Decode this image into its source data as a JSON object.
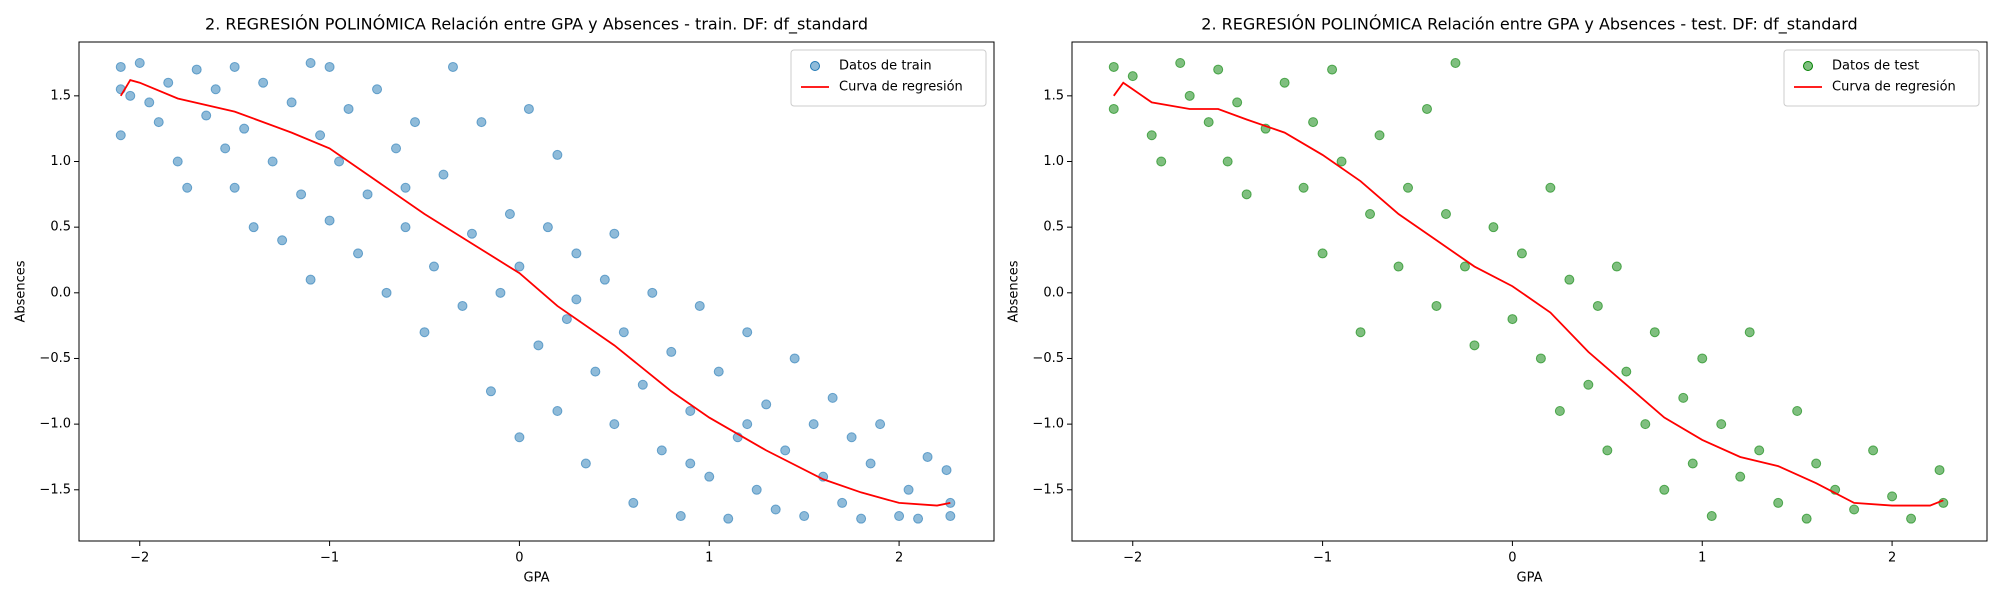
{
  "chart_data": [
    {
      "type": "scatter",
      "title": "2. REGRESIÓN POLINÓMICA Relación entre GPA y Absences - train. DF: df_standard",
      "x_label": "GPA",
      "y_label": "Absences",
      "xlim": [
        -2.32,
        2.5
      ],
      "ylim": [
        -1.89,
        1.91
      ],
      "xticks": [
        {
          "value": -2,
          "label": "−2"
        },
        {
          "value": -1,
          "label": "−1"
        },
        0,
        1,
        2
      ],
      "yticks": [
        {
          "value": -1.5,
          "label": "−1.5"
        },
        {
          "value": -1.0,
          "label": "−1.0"
        },
        {
          "value": -0.5,
          "label": "−0.5"
        },
        {
          "value": 0.0,
          "label": "0.0"
        },
        0.5,
        {
          "value": 1.0,
          "label": "1.0"
        },
        1.5
      ],
      "legend": "upper right",
      "series": [
        {
          "name": "Datos de train",
          "type": "scatter",
          "color": "#1f77b4",
          "x": [
            -2.1,
            -2.1,
            -2.05,
            -2.0,
            -1.95,
            -1.9,
            -1.85,
            -1.8,
            -1.75,
            -1.7,
            -1.65,
            -1.6,
            -1.55,
            -1.5,
            -1.5,
            -1.45,
            -1.4,
            -1.35,
            -1.3,
            -1.25,
            -1.2,
            -1.15,
            -1.1,
            -1.1,
            -1.05,
            -1.0,
            -0.95,
            -0.9,
            -0.85,
            -0.8,
            -0.75,
            -0.7,
            -0.65,
            -0.6,
            -0.55,
            -0.5,
            -0.45,
            -0.4,
            -0.35,
            -0.3,
            -0.25,
            -0.2,
            -0.15,
            -0.1,
            -0.05,
            0.0,
            0.0,
            0.05,
            0.1,
            0.15,
            0.2,
            0.2,
            0.25,
            0.3,
            0.35,
            0.4,
            0.45,
            0.5,
            0.5,
            0.55,
            0.6,
            0.65,
            0.7,
            0.75,
            0.8,
            0.85,
            0.9,
            0.95,
            1.0,
            1.05,
            1.1,
            1.15,
            1.2,
            1.25,
            1.3,
            1.35,
            1.4,
            1.45,
            1.5,
            1.55,
            1.6,
            1.65,
            1.7,
            1.75,
            1.8,
            1.85,
            1.9,
            2.0,
            2.05,
            2.1,
            2.15,
            2.25,
            2.27,
            2.27,
            -2.1,
            -1.0,
            0.3,
            -0.6,
            0.9,
            1.2
          ],
          "values": [
            1.72,
            1.2,
            1.5,
            1.75,
            1.45,
            1.3,
            1.6,
            1.0,
            0.8,
            1.7,
            1.35,
            1.55,
            1.1,
            0.8,
            1.72,
            1.25,
            0.5,
            1.6,
            1.0,
            0.4,
            1.45,
            0.75,
            1.75,
            0.1,
            1.2,
            0.55,
            1.0,
            1.4,
            0.3,
            0.75,
            1.55,
            0.0,
            1.1,
            0.5,
            1.3,
            -0.3,
            0.2,
            0.9,
            1.72,
            -0.1,
            0.45,
            1.3,
            -0.75,
            0.0,
            0.6,
            -1.1,
            0.2,
            1.4,
            -0.4,
            0.5,
            -0.9,
            1.05,
            -0.2,
            0.3,
            -1.3,
            -0.6,
            0.1,
            -1.0,
            0.45,
            -0.3,
            -1.6,
            -0.7,
            0.0,
            -1.2,
            -0.45,
            -1.7,
            -0.9,
            -0.1,
            -1.4,
            -0.6,
            -1.72,
            -1.1,
            -0.3,
            -1.5,
            -0.85,
            -1.65,
            -1.2,
            -0.5,
            -1.7,
            -1.0,
            -1.4,
            -0.8,
            -1.6,
            -1.1,
            -1.72,
            -1.3,
            -1.0,
            -1.7,
            -1.5,
            -1.72,
            -1.25,
            -1.35,
            -1.7,
            -1.6,
            1.55,
            1.72,
            -0.05,
            0.8,
            -1.3,
            -1.0
          ]
        },
        {
          "name": "Curva de regresión",
          "type": "line",
          "color": "#ff0000",
          "x": [
            -2.1,
            -2.05,
            -2.0,
            -1.8,
            -1.5,
            -1.2,
            -1.0,
            -0.8,
            -0.5,
            -0.2,
            0.0,
            0.2,
            0.5,
            0.8,
            1.0,
            1.3,
            1.6,
            1.8,
            2.0,
            2.2,
            2.27
          ],
          "values": [
            1.5,
            1.62,
            1.6,
            1.48,
            1.38,
            1.22,
            1.1,
            0.9,
            0.6,
            0.33,
            0.15,
            -0.1,
            -0.4,
            -0.75,
            -0.95,
            -1.2,
            -1.42,
            -1.52,
            -1.6,
            -1.62,
            -1.6
          ]
        }
      ]
    },
    {
      "type": "scatter",
      "title": "2. REGRESIÓN POLINÓMICA Relación entre GPA y Absences - test. DF: df_standard",
      "x_label": "GPA",
      "y_label": "Absences",
      "xlim": [
        -2.32,
        2.5
      ],
      "ylim": [
        -1.89,
        1.91
      ],
      "xticks": [
        {
          "value": -2,
          "label": "−2"
        },
        {
          "value": -1,
          "label": "−1"
        },
        0,
        1,
        2
      ],
      "yticks": [
        {
          "value": -1.5,
          "label": "−1.5"
        },
        {
          "value": -1.0,
          "label": "−1.0"
        },
        {
          "value": -0.5,
          "label": "−0.5"
        },
        {
          "value": 0.0,
          "label": "0.0"
        },
        0.5,
        {
          "value": 1.0,
          "label": "1.0"
        },
        1.5
      ],
      "legend": "upper right",
      "series": [
        {
          "name": "Datos de test",
          "type": "scatter",
          "color": "#008000",
          "x": [
            -2.1,
            -2.1,
            -2.0,
            -1.9,
            -1.85,
            -1.75,
            -1.7,
            -1.6,
            -1.55,
            -1.5,
            -1.45,
            -1.4,
            -1.3,
            -1.2,
            -1.1,
            -1.05,
            -1.0,
            -0.95,
            -0.9,
            -0.8,
            -0.75,
            -0.7,
            -0.6,
            -0.55,
            -0.45,
            -0.4,
            -0.35,
            -0.3,
            -0.25,
            -0.2,
            -0.1,
            0.0,
            0.05,
            0.15,
            0.2,
            0.25,
            0.3,
            0.4,
            0.45,
            0.5,
            0.55,
            0.6,
            0.7,
            0.75,
            0.8,
            0.9,
            0.95,
            1.0,
            1.05,
            1.1,
            1.2,
            1.25,
            1.3,
            1.4,
            1.5,
            1.55,
            1.6,
            1.7,
            1.8,
            1.9,
            2.0,
            2.1,
            2.25,
            2.27
          ],
          "values": [
            1.72,
            1.4,
            1.65,
            1.2,
            1.0,
            1.75,
            1.5,
            1.3,
            1.7,
            1.0,
            1.45,
            0.75,
            1.25,
            1.6,
            0.8,
            1.3,
            0.3,
            1.7,
            1.0,
            -0.3,
            0.6,
            1.2,
            0.2,
            0.8,
            1.4,
            -0.1,
            0.6,
            1.75,
            0.2,
            -0.4,
            0.5,
            -0.2,
            0.3,
            -0.5,
            0.8,
            -0.9,
            0.1,
            -0.7,
            -0.1,
            -1.2,
            0.2,
            -0.6,
            -1.0,
            -0.3,
            -1.5,
            -0.8,
            -1.3,
            -0.5,
            -1.7,
            -1.0,
            -1.4,
            -0.3,
            -1.2,
            -1.6,
            -0.9,
            -1.72,
            -1.3,
            -1.5,
            -1.65,
            -1.2,
            -1.55,
            -1.72,
            -1.35,
            -1.6
          ]
        },
        {
          "name": "Curva de regresión",
          "type": "line",
          "color": "#ff0000",
          "x": [
            -2.1,
            -2.05,
            -2.0,
            -1.9,
            -1.7,
            -1.55,
            -1.4,
            -1.2,
            -1.0,
            -0.8,
            -0.6,
            -0.4,
            -0.2,
            0.0,
            0.2,
            0.4,
            0.6,
            0.8,
            1.0,
            1.2,
            1.4,
            1.6,
            1.8,
            2.0,
            2.2,
            2.27
          ],
          "values": [
            1.5,
            1.6,
            1.55,
            1.45,
            1.4,
            1.4,
            1.32,
            1.22,
            1.05,
            0.85,
            0.6,
            0.4,
            0.2,
            0.05,
            -0.15,
            -0.45,
            -0.7,
            -0.95,
            -1.12,
            -1.25,
            -1.32,
            -1.45,
            -1.6,
            -1.62,
            -1.62,
            -1.58
          ]
        }
      ]
    }
  ]
}
